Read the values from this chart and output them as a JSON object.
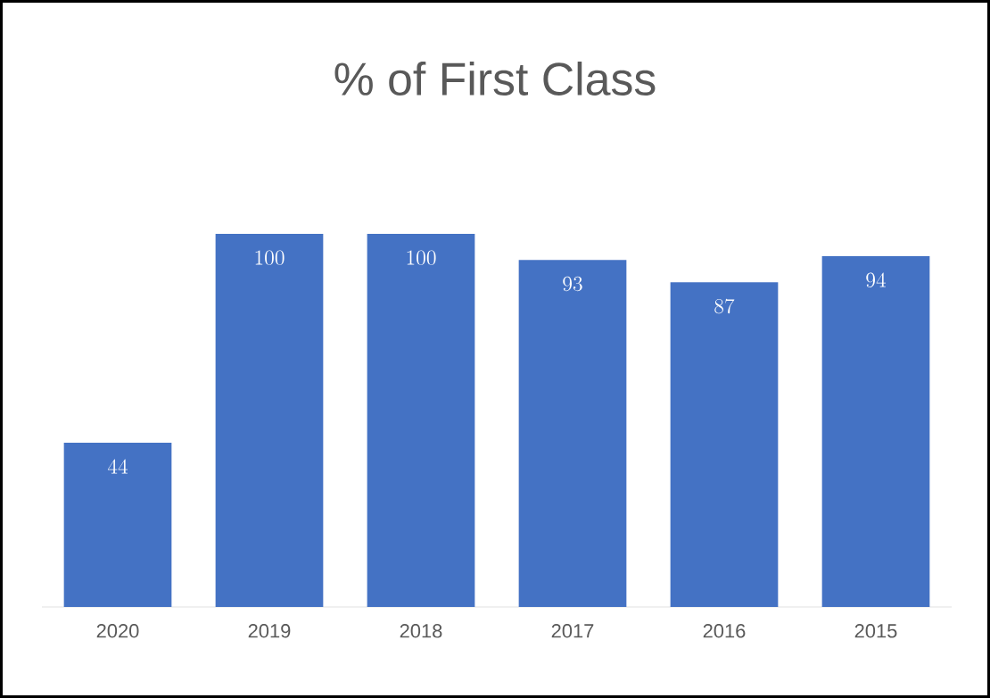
{
  "chart_data": {
    "type": "bar",
    "title": "% of First Class",
    "categories": [
      "2020",
      "2019",
      "2018",
      "2017",
      "2016",
      "2015"
    ],
    "values": [
      44,
      100,
      100,
      93,
      87,
      94
    ],
    "color": "#4472c4",
    "data_labels": true
  }
}
